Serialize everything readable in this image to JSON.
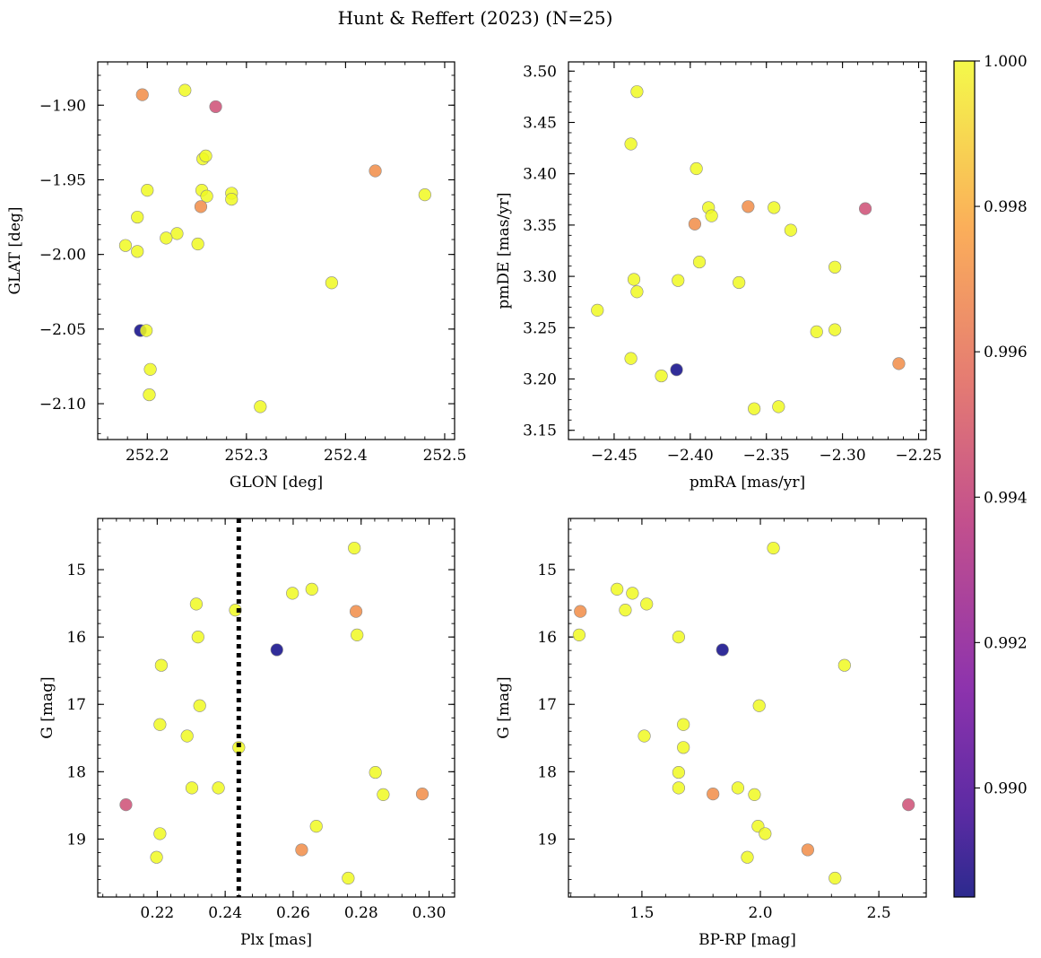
{
  "title": "Hunt & Reffert (2023) (N=25)",
  "colorbar": {
    "vmin": 0.9885,
    "vmax": 1.0,
    "tick_values": [
      0.99,
      0.992,
      0.994,
      0.996,
      0.998,
      1.0
    ],
    "tick_labels": [
      "0.990",
      "0.992",
      "0.994",
      "0.996",
      "0.998",
      "1.000"
    ],
    "colormap": "plasma",
    "colors": [
      "#0d0887",
      "#6a00a8",
      "#b12a90",
      "#e16462",
      "#fca636",
      "#f0f921"
    ]
  },
  "chart_data": [
    {
      "type": "scatter",
      "id": "glon-glat",
      "xlabel": "GLON [deg]",
      "ylabel": "GLAT [deg]",
      "xlim": [
        252.15,
        252.51
      ],
      "ylim": [
        -2.124,
        -1.871
      ],
      "invert_y": false,
      "xticks": [
        252.2,
        252.3,
        252.4,
        252.5
      ],
      "xtick_labels": [
        "252.2",
        "252.3",
        "252.4",
        "252.5"
      ],
      "yticks": [
        -1.9,
        -1.95,
        -2.0,
        -2.05,
        -2.1
      ],
      "ytick_labels": [
        "−1.90",
        "−1.95",
        "−2.00",
        "−2.05",
        "−2.10"
      ],
      "points": [
        {
          "x": 252.195,
          "y": -1.893,
          "c": 0.9968
        },
        {
          "x": 252.238,
          "y": -1.89,
          "c": 1.0
        },
        {
          "x": 252.269,
          "y": -1.901,
          "c": 0.9945
        },
        {
          "x": 252.256,
          "y": -1.936,
          "c": 1.0
        },
        {
          "x": 252.259,
          "y": -1.934,
          "c": 1.0
        },
        {
          "x": 252.43,
          "y": -1.944,
          "c": 0.9968
        },
        {
          "x": 252.48,
          "y": -1.96,
          "c": 1.0
        },
        {
          "x": 252.2,
          "y": -1.957,
          "c": 1.0
        },
        {
          "x": 252.255,
          "y": -1.957,
          "c": 1.0
        },
        {
          "x": 252.26,
          "y": -1.961,
          "c": 1.0
        },
        {
          "x": 252.285,
          "y": -1.959,
          "c": 1.0
        },
        {
          "x": 252.285,
          "y": -1.963,
          "c": 1.0
        },
        {
          "x": 252.254,
          "y": -1.968,
          "c": 0.9968
        },
        {
          "x": 252.19,
          "y": -1.975,
          "c": 1.0
        },
        {
          "x": 252.23,
          "y": -1.986,
          "c": 1.0
        },
        {
          "x": 252.219,
          "y": -1.989,
          "c": 1.0
        },
        {
          "x": 252.251,
          "y": -1.993,
          "c": 1.0
        },
        {
          "x": 252.178,
          "y": -1.994,
          "c": 1.0
        },
        {
          "x": 252.19,
          "y": -1.998,
          "c": 1.0
        },
        {
          "x": 252.386,
          "y": -2.019,
          "c": 1.0
        },
        {
          "x": 252.193,
          "y": -2.051,
          "c": 0.9885
        },
        {
          "x": 252.199,
          "y": -2.051,
          "c": 1.0
        },
        {
          "x": 252.203,
          "y": -2.077,
          "c": 1.0
        },
        {
          "x": 252.202,
          "y": -2.094,
          "c": 1.0
        },
        {
          "x": 252.314,
          "y": -2.102,
          "c": 1.0
        }
      ]
    },
    {
      "type": "scatter",
      "id": "pmra-pmde",
      "xlabel": "pmRA [mas/yr]",
      "ylabel": "pmDE [mas/yr]",
      "xlim": [
        -2.48,
        -2.245
      ],
      "ylim": [
        3.141,
        3.509
      ],
      "invert_y": false,
      "xticks": [
        -2.45,
        -2.4,
        -2.35,
        -2.3,
        -2.25
      ],
      "xtick_labels": [
        "−2.45",
        "−2.40",
        "−2.35",
        "−2.30",
        "−2.25"
      ],
      "yticks": [
        3.15,
        3.2,
        3.25,
        3.3,
        3.35,
        3.4,
        3.45,
        3.5
      ],
      "ytick_labels": [
        "3.15",
        "3.20",
        "3.25",
        "3.30",
        "3.35",
        "3.40",
        "3.45",
        "3.50"
      ],
      "points": [
        {
          "x": -2.435,
          "y": 3.48,
          "c": 1.0
        },
        {
          "x": -2.439,
          "y": 3.429,
          "c": 1.0
        },
        {
          "x": -2.396,
          "y": 3.405,
          "c": 1.0
        },
        {
          "x": -2.362,
          "y": 3.368,
          "c": 0.9968
        },
        {
          "x": -2.345,
          "y": 3.367,
          "c": 1.0
        },
        {
          "x": -2.388,
          "y": 3.367,
          "c": 1.0
        },
        {
          "x": -2.285,
          "y": 3.366,
          "c": 0.9945
        },
        {
          "x": -2.386,
          "y": 3.359,
          "c": 1.0
        },
        {
          "x": -2.397,
          "y": 3.351,
          "c": 0.9968
        },
        {
          "x": -2.334,
          "y": 3.345,
          "c": 1.0
        },
        {
          "x": -2.394,
          "y": 3.314,
          "c": 1.0
        },
        {
          "x": -2.305,
          "y": 3.309,
          "c": 1.0
        },
        {
          "x": -2.437,
          "y": 3.297,
          "c": 1.0
        },
        {
          "x": -2.408,
          "y": 3.296,
          "c": 1.0
        },
        {
          "x": -2.368,
          "y": 3.294,
          "c": 1.0
        },
        {
          "x": -2.435,
          "y": 3.285,
          "c": 1.0
        },
        {
          "x": -2.461,
          "y": 3.267,
          "c": 1.0
        },
        {
          "x": -2.305,
          "y": 3.248,
          "c": 1.0
        },
        {
          "x": -2.317,
          "y": 3.246,
          "c": 1.0
        },
        {
          "x": -2.439,
          "y": 3.22,
          "c": 1.0
        },
        {
          "x": -2.263,
          "y": 3.215,
          "c": 0.9968
        },
        {
          "x": -2.409,
          "y": 3.209,
          "c": 0.9885
        },
        {
          "x": -2.419,
          "y": 3.203,
          "c": 1.0
        },
        {
          "x": -2.342,
          "y": 3.173,
          "c": 1.0
        },
        {
          "x": -2.358,
          "y": 3.171,
          "c": 1.0
        }
      ]
    },
    {
      "type": "scatter",
      "id": "plx-g",
      "xlabel": "Plx [mas]",
      "ylabel": "G [mag]",
      "xlim": [
        0.2025,
        0.3075
      ],
      "ylim": [
        14.24,
        19.86
      ],
      "invert_y": true,
      "vline": {
        "x": 0.244,
        "style": "dotted"
      },
      "xticks": [
        0.22,
        0.24,
        0.26,
        0.28,
        0.3
      ],
      "xtick_labels": [
        "0.22",
        "0.24",
        "0.26",
        "0.28",
        "0.30"
      ],
      "yticks": [
        15,
        16,
        17,
        18,
        19
      ],
      "ytick_labels": [
        "15",
        "16",
        "17",
        "18",
        "19"
      ],
      "points": [
        {
          "x": 0.278,
          "y": 14.68,
          "c": 1.0
        },
        {
          "x": 0.2655,
          "y": 15.29,
          "c": 1.0
        },
        {
          "x": 0.2598,
          "y": 15.35,
          "c": 1.0
        },
        {
          "x": 0.2315,
          "y": 15.51,
          "c": 1.0
        },
        {
          "x": 0.243,
          "y": 15.6,
          "c": 1.0
        },
        {
          "x": 0.2785,
          "y": 15.62,
          "c": 0.9968
        },
        {
          "x": 0.2788,
          "y": 15.97,
          "c": 1.0
        },
        {
          "x": 0.232,
          "y": 16.0,
          "c": 1.0
        },
        {
          "x": 0.2552,
          "y": 16.19,
          "c": 0.9885
        },
        {
          "x": 0.2212,
          "y": 16.42,
          "c": 1.0
        },
        {
          "x": 0.2325,
          "y": 17.02,
          "c": 1.0
        },
        {
          "x": 0.2208,
          "y": 17.3,
          "c": 1.0
        },
        {
          "x": 0.2288,
          "y": 17.47,
          "c": 1.0
        },
        {
          "x": 0.244,
          "y": 17.64,
          "c": 1.0
        },
        {
          "x": 0.2842,
          "y": 18.01,
          "c": 1.0
        },
        {
          "x": 0.2302,
          "y": 18.24,
          "c": 1.0
        },
        {
          "x": 0.238,
          "y": 18.24,
          "c": 1.0
        },
        {
          "x": 0.298,
          "y": 18.33,
          "c": 0.9968
        },
        {
          "x": 0.2865,
          "y": 18.34,
          "c": 1.0
        },
        {
          "x": 0.2108,
          "y": 18.49,
          "c": 0.9945
        },
        {
          "x": 0.2668,
          "y": 18.81,
          "c": 1.0
        },
        {
          "x": 0.2208,
          "y": 18.92,
          "c": 1.0
        },
        {
          "x": 0.2625,
          "y": 19.16,
          "c": 0.9968
        },
        {
          "x": 0.2198,
          "y": 19.27,
          "c": 1.0
        },
        {
          "x": 0.2762,
          "y": 19.58,
          "c": 1.0
        }
      ]
    },
    {
      "type": "scatter",
      "id": "bprp-g",
      "xlabel": "BP-RP [mag]",
      "ylabel": "G [mag]",
      "xlim": [
        1.19,
        2.7
      ],
      "ylim": [
        14.24,
        19.86
      ],
      "invert_y": true,
      "xticks": [
        1.5,
        2.0,
        2.5
      ],
      "xtick_labels": [
        "1.5",
        "2.0",
        "2.5"
      ],
      "yticks": [
        15,
        16,
        17,
        18,
        19
      ],
      "ytick_labels": [
        "15",
        "16",
        "17",
        "18",
        "19"
      ],
      "points": [
        {
          "x": 2.055,
          "y": 14.68,
          "c": 1.0
        },
        {
          "x": 1.395,
          "y": 15.29,
          "c": 1.0
        },
        {
          "x": 1.46,
          "y": 15.35,
          "c": 1.0
        },
        {
          "x": 1.52,
          "y": 15.51,
          "c": 1.0
        },
        {
          "x": 1.43,
          "y": 15.6,
          "c": 1.0
        },
        {
          "x": 1.24,
          "y": 15.62,
          "c": 0.9968
        },
        {
          "x": 1.235,
          "y": 15.97,
          "c": 1.0
        },
        {
          "x": 1.655,
          "y": 16.0,
          "c": 1.0
        },
        {
          "x": 1.84,
          "y": 16.19,
          "c": 0.9885
        },
        {
          "x": 2.355,
          "y": 16.42,
          "c": 1.0
        },
        {
          "x": 1.995,
          "y": 17.02,
          "c": 1.0
        },
        {
          "x": 1.675,
          "y": 17.3,
          "c": 1.0
        },
        {
          "x": 1.51,
          "y": 17.47,
          "c": 1.0
        },
        {
          "x": 1.675,
          "y": 17.64,
          "c": 1.0
        },
        {
          "x": 1.655,
          "y": 18.01,
          "c": 1.0
        },
        {
          "x": 1.655,
          "y": 18.24,
          "c": 1.0
        },
        {
          "x": 1.905,
          "y": 18.24,
          "c": 1.0
        },
        {
          "x": 1.8,
          "y": 18.33,
          "c": 0.9968
        },
        {
          "x": 1.975,
          "y": 18.34,
          "c": 1.0
        },
        {
          "x": 2.625,
          "y": 18.49,
          "c": 0.9945
        },
        {
          "x": 1.99,
          "y": 18.81,
          "c": 1.0
        },
        {
          "x": 2.02,
          "y": 18.92,
          "c": 1.0
        },
        {
          "x": 2.2,
          "y": 19.16,
          "c": 0.9968
        },
        {
          "x": 1.945,
          "y": 19.27,
          "c": 1.0
        },
        {
          "x": 2.315,
          "y": 19.58,
          "c": 1.0
        }
      ]
    }
  ]
}
